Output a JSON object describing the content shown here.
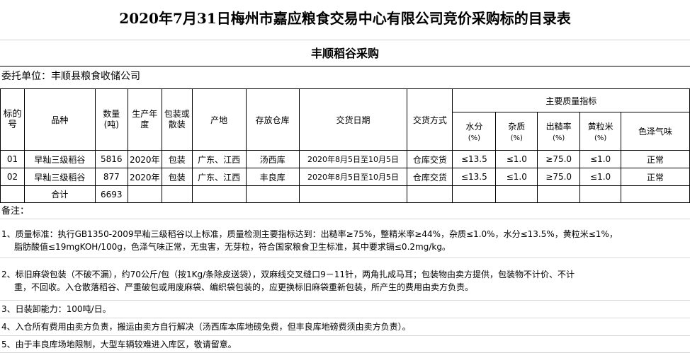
{
  "title": "2020年7月31日梅州市嘉应粮食交易中心有限公司竞价采购标的目录表",
  "subtitle": "丰顺稻谷采购",
  "client": "委托单位：丰顺县粮食收储公司",
  "headers": {
    "lot": "标的号",
    "variety": "品种",
    "qty": "数量(吨)",
    "year": "生产年度",
    "pack": "包装或散装",
    "origin": "产地",
    "warehouse": "存放仓库",
    "date": "交货日期",
    "delivery": "交货方式",
    "quality": "主要质量指标",
    "moisture": "水分",
    "impurity": "杂质",
    "yield": "出糙率",
    "yellow": "黄粒米",
    "pct": "(%)",
    "color": "色泽气味"
  },
  "rows": [
    {
      "lot": "01",
      "variety": "早籼三级稻谷",
      "qty": "5816",
      "year": "2020年",
      "pack": "包装",
      "origin": "广东、江西",
      "warehouse": "汤西库",
      "date": "2020年8月5日至10月5日",
      "delivery": "仓库交货",
      "moisture": "≤13.5",
      "impurity": "≤1.0",
      "yield": "≥75.0",
      "yellow": "≤1.0",
      "color": "正常"
    },
    {
      "lot": "02",
      "variety": "早籼三级稻谷",
      "qty": "877",
      "year": "2020年",
      "pack": "包装",
      "origin": "广东、江西",
      "warehouse": "丰良库",
      "date": "2020年8月5日至10月5日",
      "delivery": "仓库交货",
      "moisture": "≤13.5",
      "impurity": "≤1.0",
      "yield": "≥75.0",
      "yellow": "≤1.0",
      "color": "正常"
    }
  ],
  "total": {
    "label": "合计",
    "qty": "6693"
  },
  "notes": {
    "heading": "备注：",
    "n1a": "1、质量标准：执行GB1350-2009早籼三级稻谷以上标准，质量检测主要指标达到：出糙率≥75%，整精米率≥44%，杂质≤1.0%，水分≤13.5%，黄粒米≤1%，",
    "n1b": "脂肪酸值≤19mgKOH/100g，色泽气味正常，无虫害，无芽粒，符合国家粮食卫生标准，其中要求镉≤0.2mg/kg。",
    "n2a": "2、标旧麻袋包装（不破不漏），约70公斤/包（按1Kg/条除皮送袋），双麻线交叉缝口9－11针，两角扎成马耳；包装物由卖方提供，包装物不计价、不计",
    "n2b": "重，不回收。入仓散落稻谷、严重破包或用废麻袋、编织袋包装的，应更换标旧麻袋重新包装，所产生的费用由卖方负责。",
    "n3": "3、日装卸能力：100吨/日。",
    "n4": "4、入仓所有费用由卖方负责，搬运由卖方自行解决（汤西库本库地磅免费，但丰良库地磅费须由卖方负责）。",
    "n5": "5、由于丰良库场地限制，大型车辆较难进入库区，敬请留意。"
  }
}
